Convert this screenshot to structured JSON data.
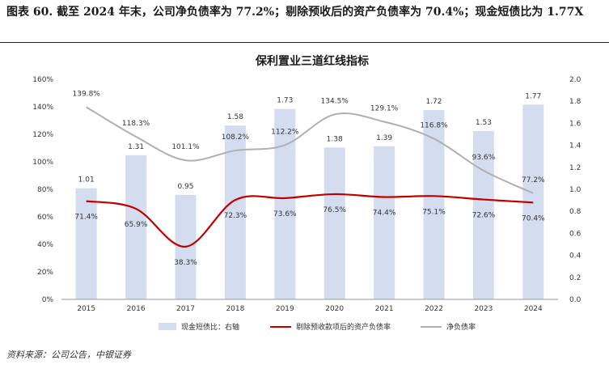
{
  "caption": "图表 60. 截至 2024 年末，公司净负债率为 77.2%；剔除预收后的资产负债率为 70.4%；现金短债比为 1.77X",
  "source": "资料来源：公司公告，中银证券",
  "chart_data": {
    "type": "bar+line",
    "title": "保利置业三道红线指标",
    "categories": [
      "2015",
      "2016",
      "2017",
      "2018",
      "2019",
      "2020",
      "2021",
      "2022",
      "2023",
      "2024"
    ],
    "left_axis": {
      "ylim": [
        0,
        160
      ],
      "ticks": [
        "0%",
        "20%",
        "40%",
        "60%",
        "80%",
        "100%",
        "120%",
        "140%",
        "160%"
      ]
    },
    "right_axis": {
      "ylim": [
        0,
        2.0
      ],
      "ticks": [
        "0.0",
        "0.2",
        "0.4",
        "0.6",
        "0.8",
        "1.0",
        "1.2",
        "1.4",
        "1.6",
        "1.8",
        "2.0"
      ]
    },
    "series": [
      {
        "name": "现金短债比：右轴",
        "type": "bar",
        "axis": "right",
        "color": "#d4dcf0",
        "values": [
          1.01,
          1.31,
          0.95,
          1.58,
          1.73,
          1.38,
          1.39,
          1.72,
          1.53,
          1.77
        ],
        "labels": [
          "1.01",
          "1.31",
          "0.95",
          "1.58",
          "1.73",
          "1.38",
          "1.39",
          "1.72",
          "1.53",
          "1.77"
        ]
      },
      {
        "name": "剔除预收款项后的资产负债率",
        "type": "line",
        "axis": "left",
        "color": "#c00000",
        "values": [
          71.4,
          65.9,
          38.3,
          72.3,
          73.6,
          76.5,
          74.4,
          75.1,
          72.6,
          70.4
        ],
        "labels": [
          "71.4%",
          "65.9%",
          "38.3%",
          "72.3%",
          "73.6%",
          "76.5%",
          "74.4%",
          "75.1%",
          "72.6%",
          "70.4%"
        ]
      },
      {
        "name": "净负债率",
        "type": "line",
        "axis": "left",
        "color": "#b0b0b0",
        "values": [
          139.8,
          118.3,
          101.1,
          108.2,
          112.2,
          134.5,
          129.1,
          116.8,
          93.6,
          77.2
        ],
        "labels": [
          "139.8%",
          "118.3%",
          "101.1%",
          "108.2%",
          "112.2%",
          "134.5%",
          "129.1%",
          "116.8%",
          "93.6%",
          "77.2%"
        ]
      }
    ],
    "legend_position": "bottom"
  }
}
